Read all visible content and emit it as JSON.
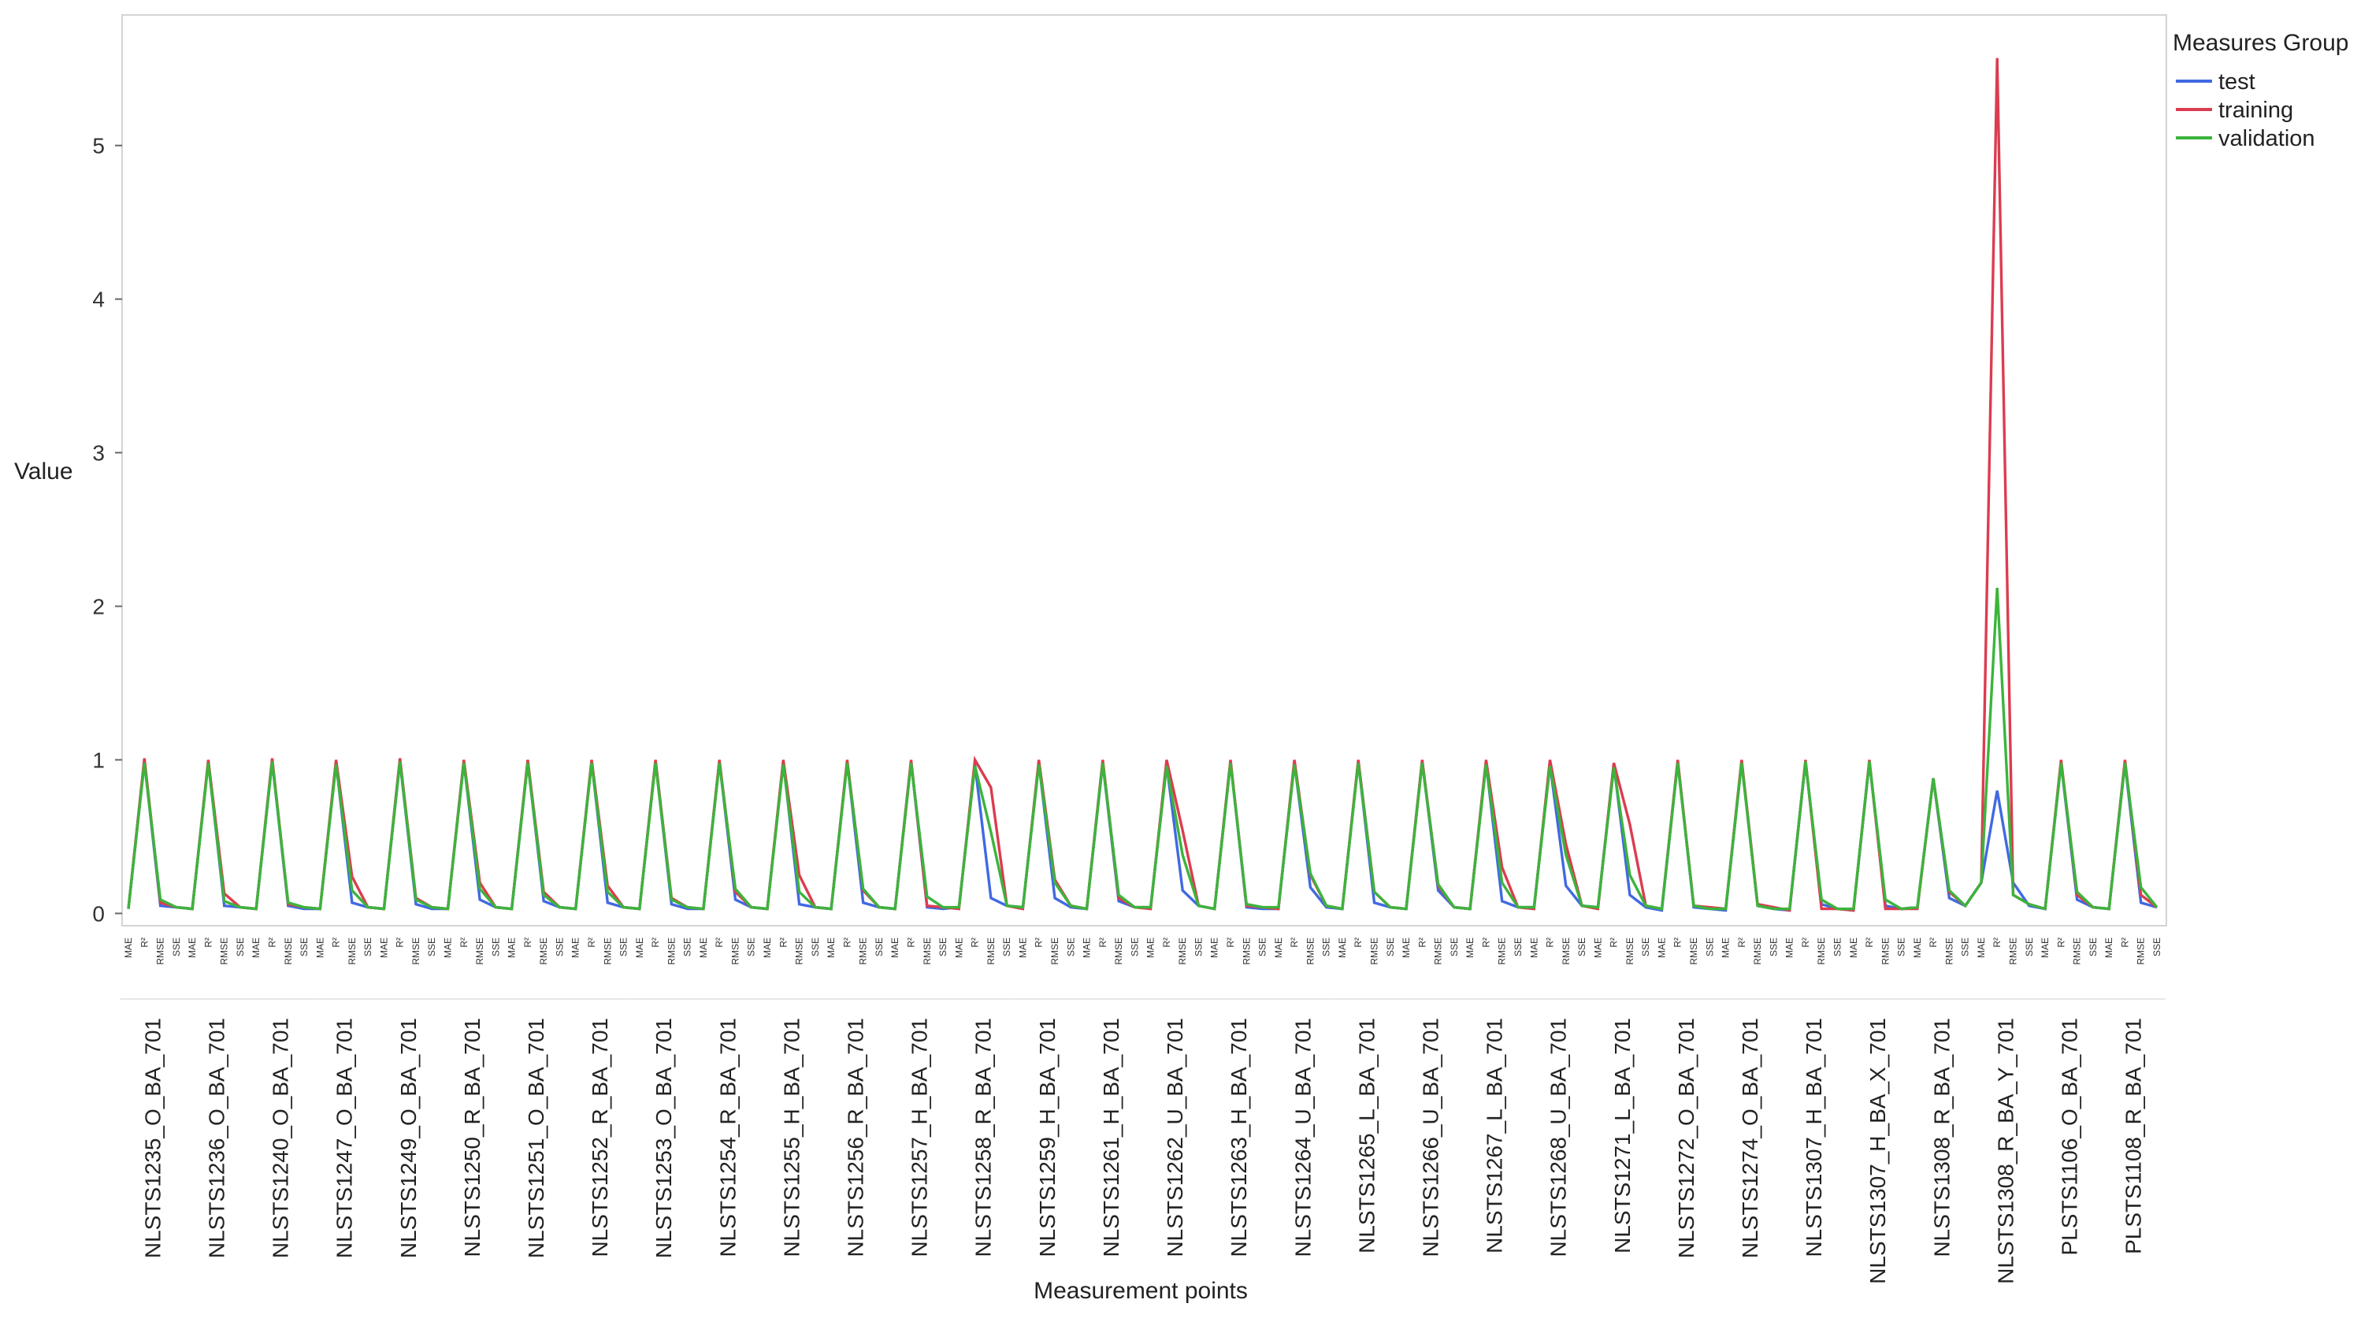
{
  "chart_data": {
    "type": "line",
    "title": "",
    "xlabel": "Measurement points",
    "ylabel": "Value",
    "ylim": [
      -0.08,
      5.85
    ],
    "yticks": [
      0,
      1,
      2,
      3,
      4,
      5
    ],
    "grid": false,
    "legend_position": "top-right",
    "legend_title": "Measures Group",
    "metrics": [
      "MAE",
      "R²",
      "RMSE",
      "SSE"
    ],
    "points": [
      "NLSTS1235_O_BA_701",
      "NLSTS1236_O_BA_701",
      "NLSTS1240_O_BA_701",
      "NLSTS1247_O_BA_701",
      "NLSTS1249_O_BA_701",
      "NLSTS1250_R_BA_701",
      "NLSTS1251_O_BA_701",
      "NLSTS1252_R_BA_701",
      "NLSTS1253_O_BA_701",
      "NLSTS1254_R_BA_701",
      "NLSTS1255_H_BA_701",
      "NLSTS1256_R_BA_701",
      "NLSTS1257_H_BA_701",
      "NLSTS1258_R_BA_701",
      "NLSTS1259_H_BA_701",
      "NLSTS1261_H_BA_701",
      "NLSTS1262_U_BA_701",
      "NLSTS1263_H_BA_701",
      "NLSTS1264_U_BA_701",
      "NLSTS1265_L_BA_701",
      "NLSTS1266_U_BA_701",
      "NLSTS1267_L_BA_701",
      "NLSTS1268_U_BA_701",
      "NLSTS1271_L_BA_701",
      "NLSTS1272_O_BA_701",
      "NLSTS1274_O_BA_701",
      "NLSTS1307_H_BA_701",
      "NLSTS1307_H_BA_X_701",
      "NLSTS1308_R_BA_701",
      "NLSTS1308_R_BA_Y_701",
      "PLSTS1106_O_BA_701",
      "PLSTS1108_R_BA_701"
    ],
    "series": [
      {
        "name": "test",
        "color": "#4169e1",
        "values": [
          [
            0.03,
            0.99,
            0.05,
            0.04
          ],
          [
            0.03,
            0.99,
            0.05,
            0.04
          ],
          [
            0.03,
            0.99,
            0.05,
            0.03
          ],
          [
            0.03,
            0.98,
            0.07,
            0.04
          ],
          [
            0.03,
            0.99,
            0.06,
            0.03
          ],
          [
            0.03,
            0.99,
            0.09,
            0.04
          ],
          [
            0.03,
            0.99,
            0.08,
            0.04
          ],
          [
            0.03,
            0.99,
            0.07,
            0.04
          ],
          [
            0.03,
            0.99,
            0.06,
            0.03
          ],
          [
            0.03,
            0.99,
            0.09,
            0.04
          ],
          [
            0.03,
            0.99,
            0.06,
            0.04
          ],
          [
            0.03,
            0.99,
            0.07,
            0.04
          ],
          [
            0.03,
            0.99,
            0.04,
            0.03
          ],
          [
            0.04,
            0.97,
            0.1,
            0.05
          ],
          [
            0.04,
            0.98,
            0.1,
            0.04
          ],
          [
            0.03,
            0.98,
            0.08,
            0.04
          ],
          [
            0.04,
            0.97,
            0.15,
            0.05
          ],
          [
            0.03,
            0.99,
            0.04,
            0.03
          ],
          [
            0.03,
            0.98,
            0.17,
            0.04
          ],
          [
            0.03,
            0.99,
            0.07,
            0.04
          ],
          [
            0.03,
            0.99,
            0.15,
            0.04
          ],
          [
            0.03,
            0.98,
            0.08,
            0.04
          ],
          [
            0.04,
            0.97,
            0.18,
            0.05
          ],
          [
            0.04,
            0.97,
            0.12,
            0.04
          ],
          [
            0.02,
            0.99,
            0.04,
            0.03
          ],
          [
            0.02,
            0.99,
            0.05,
            0.03
          ],
          [
            0.02,
            0.99,
            0.06,
            0.03
          ],
          [
            0.02,
            0.99,
            0.05,
            0.03
          ],
          [
            0.04,
            0.88,
            0.1,
            0.05
          ],
          [
            0.2,
            0.8,
            0.2,
            0.05
          ],
          [
            0.03,
            0.98,
            0.09,
            0.04
          ],
          [
            0.03,
            0.98,
            0.07,
            0.04
          ]
        ]
      },
      {
        "name": "training",
        "color": "#dc3c50",
        "values": [
          [
            0.03,
            1.01,
            0.07,
            0.04
          ],
          [
            0.03,
            1.0,
            0.13,
            0.04
          ],
          [
            0.03,
            1.01,
            0.06,
            0.04
          ],
          [
            0.03,
            1.0,
            0.24,
            0.04
          ],
          [
            0.03,
            1.01,
            0.1,
            0.04
          ],
          [
            0.03,
            1.0,
            0.2,
            0.04
          ],
          [
            0.03,
            1.0,
            0.14,
            0.04
          ],
          [
            0.03,
            1.0,
            0.18,
            0.04
          ],
          [
            0.03,
            1.0,
            0.1,
            0.04
          ],
          [
            0.03,
            1.0,
            0.14,
            0.04
          ],
          [
            0.03,
            1.0,
            0.25,
            0.04
          ],
          [
            0.03,
            1.0,
            0.15,
            0.04
          ],
          [
            0.03,
            1.0,
            0.05,
            0.04
          ],
          [
            0.03,
            1.0,
            0.82,
            0.05
          ],
          [
            0.03,
            1.0,
            0.22,
            0.05
          ],
          [
            0.03,
            1.0,
            0.1,
            0.04
          ],
          [
            0.03,
            1.0,
            0.54,
            0.05
          ],
          [
            0.03,
            1.0,
            0.05,
            0.04
          ],
          [
            0.03,
            1.0,
            0.25,
            0.05
          ],
          [
            0.03,
            1.0,
            0.14,
            0.04
          ],
          [
            0.03,
            1.0,
            0.18,
            0.04
          ],
          [
            0.03,
            1.0,
            0.3,
            0.04
          ],
          [
            0.03,
            1.0,
            0.45,
            0.05
          ],
          [
            0.03,
            0.98,
            0.58,
            0.05
          ],
          [
            0.03,
            1.0,
            0.05,
            0.04
          ],
          [
            0.03,
            1.0,
            0.06,
            0.04
          ],
          [
            0.02,
            1.0,
            0.03,
            0.03
          ],
          [
            0.02,
            1.0,
            0.03,
            0.03
          ],
          [
            0.03,
            0.88,
            0.14,
            0.05
          ],
          [
            0.2,
            5.57,
            0.12,
            0.06
          ],
          [
            0.03,
            1.0,
            0.12,
            0.04
          ],
          [
            0.03,
            1.0,
            0.12,
            0.04
          ]
        ]
      },
      {
        "name": "validation",
        "color": "#3cb43c",
        "values": [
          [
            0.03,
            0.98,
            0.09,
            0.04
          ],
          [
            0.03,
            0.98,
            0.08,
            0.04
          ],
          [
            0.03,
            0.99,
            0.07,
            0.04
          ],
          [
            0.03,
            0.97,
            0.15,
            0.04
          ],
          [
            0.03,
            0.99,
            0.09,
            0.04
          ],
          [
            0.03,
            0.98,
            0.16,
            0.04
          ],
          [
            0.03,
            0.98,
            0.12,
            0.04
          ],
          [
            0.03,
            0.98,
            0.14,
            0.04
          ],
          [
            0.03,
            0.98,
            0.09,
            0.04
          ],
          [
            0.03,
            0.98,
            0.16,
            0.04
          ],
          [
            0.03,
            0.97,
            0.14,
            0.04
          ],
          [
            0.03,
            0.98,
            0.16,
            0.04
          ],
          [
            0.03,
            0.98,
            0.11,
            0.04
          ],
          [
            0.04,
            0.96,
            0.53,
            0.05
          ],
          [
            0.04,
            0.97,
            0.2,
            0.05
          ],
          [
            0.03,
            0.98,
            0.12,
            0.04
          ],
          [
            0.04,
            0.96,
            0.38,
            0.05
          ],
          [
            0.03,
            0.98,
            0.06,
            0.04
          ],
          [
            0.04,
            0.97,
            0.26,
            0.05
          ],
          [
            0.03,
            0.98,
            0.14,
            0.04
          ],
          [
            0.03,
            0.98,
            0.19,
            0.04
          ],
          [
            0.03,
            0.97,
            0.2,
            0.04
          ],
          [
            0.04,
            0.96,
            0.38,
            0.05
          ],
          [
            0.04,
            0.95,
            0.25,
            0.05
          ],
          [
            0.03,
            0.98,
            0.05,
            0.03
          ],
          [
            0.03,
            0.98,
            0.05,
            0.03
          ],
          [
            0.03,
            0.99,
            0.09,
            0.03
          ],
          [
            0.03,
            0.99,
            0.09,
            0.03
          ],
          [
            0.04,
            0.88,
            0.15,
            0.05
          ],
          [
            0.2,
            2.12,
            0.12,
            0.06
          ],
          [
            0.03,
            0.98,
            0.14,
            0.04
          ],
          [
            0.03,
            0.98,
            0.17,
            0.04
          ]
        ]
      }
    ]
  }
}
